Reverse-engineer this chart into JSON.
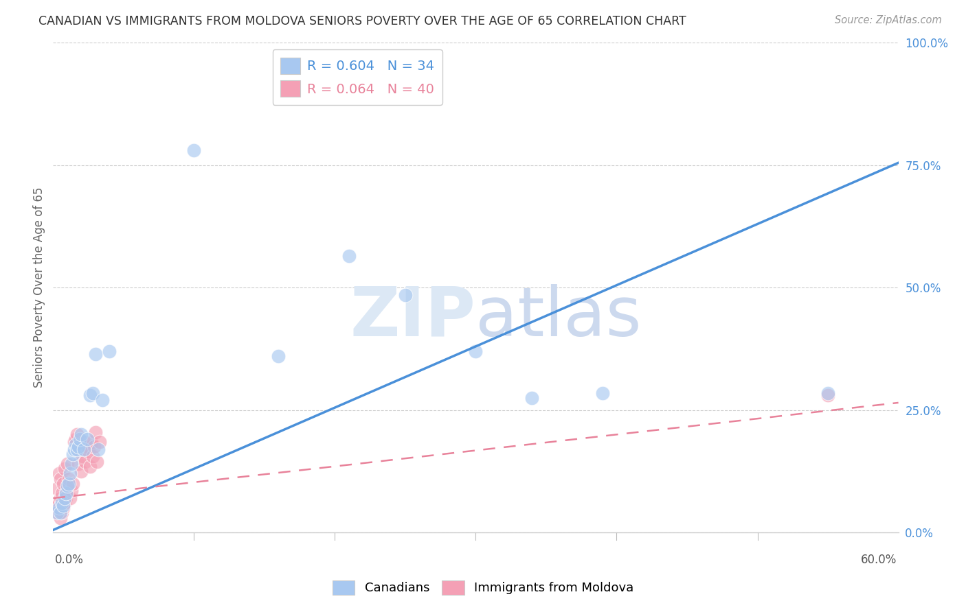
{
  "title": "CANADIAN VS IMMIGRANTS FROM MOLDOVA SENIORS POVERTY OVER THE AGE OF 65 CORRELATION CHART",
  "source": "Source: ZipAtlas.com",
  "ylabel": "Seniors Poverty Over the Age of 65",
  "ytick_labels": [
    "0.0%",
    "25.0%",
    "50.0%",
    "75.0%",
    "100.0%"
  ],
  "ytick_values": [
    0.0,
    0.25,
    0.5,
    0.75,
    1.0
  ],
  "xlim": [
    0.0,
    0.6
  ],
  "ylim": [
    0.0,
    1.0
  ],
  "canadians_color": "#a8c8f0",
  "moldova_color": "#f4a0b5",
  "canadians_line_color": "#4a90d9",
  "moldova_line_color": "#e8829a",
  "background_color": "#ffffff",
  "canadians_x": [
    0.003,
    0.004,
    0.005,
    0.006,
    0.007,
    0.008,
    0.009,
    0.01,
    0.011,
    0.012,
    0.013,
    0.014,
    0.015,
    0.016,
    0.017,
    0.018,
    0.019,
    0.02,
    0.022,
    0.024,
    0.026,
    0.028,
    0.03,
    0.032,
    0.035,
    0.04,
    0.1,
    0.16,
    0.21,
    0.25,
    0.3,
    0.34,
    0.39,
    0.55
  ],
  "canadians_y": [
    0.04,
    0.05,
    0.04,
    0.06,
    0.055,
    0.07,
    0.08,
    0.095,
    0.1,
    0.12,
    0.14,
    0.16,
    0.17,
    0.18,
    0.17,
    0.175,
    0.19,
    0.2,
    0.17,
    0.19,
    0.28,
    0.285,
    0.365,
    0.17,
    0.27,
    0.37,
    0.78,
    0.36,
    0.565,
    0.485,
    0.37,
    0.275,
    0.285,
    0.285
  ],
  "moldova_x": [
    0.002,
    0.003,
    0.003,
    0.004,
    0.004,
    0.005,
    0.005,
    0.005,
    0.006,
    0.006,
    0.007,
    0.007,
    0.008,
    0.008,
    0.009,
    0.01,
    0.01,
    0.011,
    0.012,
    0.013,
    0.014,
    0.015,
    0.016,
    0.017,
    0.018,
    0.019,
    0.02,
    0.021,
    0.022,
    0.023,
    0.024,
    0.025,
    0.026,
    0.027,
    0.028,
    0.029,
    0.03,
    0.031,
    0.033,
    0.55
  ],
  "moldova_y": [
    0.05,
    0.04,
    0.09,
    0.06,
    0.12,
    0.03,
    0.07,
    0.11,
    0.04,
    0.08,
    0.05,
    0.1,
    0.06,
    0.13,
    0.07,
    0.09,
    0.14,
    0.11,
    0.07,
    0.085,
    0.1,
    0.185,
    0.19,
    0.2,
    0.14,
    0.165,
    0.125,
    0.155,
    0.185,
    0.145,
    0.175,
    0.165,
    0.135,
    0.185,
    0.155,
    0.175,
    0.205,
    0.145,
    0.185,
    0.28
  ],
  "can_line_x": [
    0.0,
    0.6
  ],
  "can_line_y": [
    0.005,
    0.755
  ],
  "mol_line_x": [
    0.0,
    0.6
  ],
  "mol_line_y": [
    0.07,
    0.265
  ]
}
